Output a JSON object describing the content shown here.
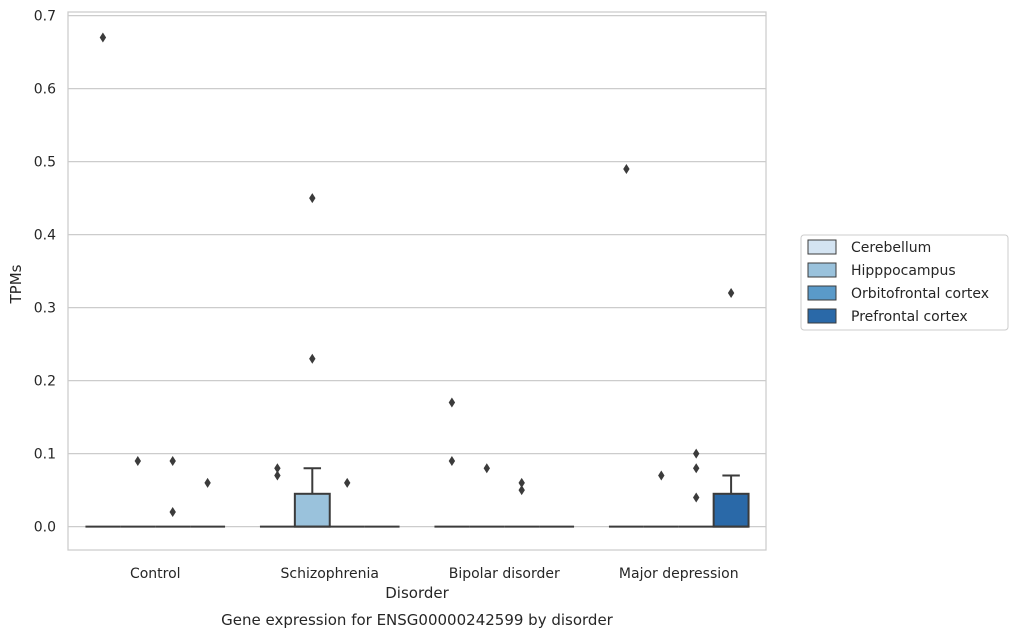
{
  "chart_data": {
    "type": "box",
    "title": "",
    "caption": "Gene expression for ENSG00000242599 by disorder",
    "xlabel": "Disorder",
    "ylabel": "TPMs",
    "ylim": [
      -0.032,
      0.705
    ],
    "yticks": [
      0.0,
      0.1,
      0.2,
      0.3,
      0.4,
      0.5,
      0.6,
      0.7
    ],
    "ytick_labels": [
      "0.0",
      "0.1",
      "0.2",
      "0.3",
      "0.4",
      "0.5",
      "0.6",
      "0.7"
    ],
    "grid": "horizontal",
    "legend_position": "right",
    "categories": [
      "Control",
      "Schizophrenia",
      "Bipolar disorder",
      "Major depression"
    ],
    "series": [
      {
        "name": "Cerebellum",
        "color": "#d4e4f2",
        "boxes": [
          {
            "q1": 0,
            "median": 0,
            "q3": 0,
            "whisker_low": 0,
            "whisker_high": 0,
            "outliers": [
              0.67
            ]
          },
          {
            "q1": 0,
            "median": 0,
            "q3": 0,
            "whisker_low": 0,
            "whisker_high": 0,
            "outliers": [
              0.07,
              0.08
            ]
          },
          {
            "q1": 0,
            "median": 0,
            "q3": 0,
            "whisker_low": 0,
            "whisker_high": 0,
            "outliers": [
              0.09,
              0.17
            ]
          },
          {
            "q1": 0,
            "median": 0,
            "q3": 0,
            "whisker_low": 0,
            "whisker_high": 0,
            "outliers": [
              0.49
            ]
          }
        ]
      },
      {
        "name": "Hipppocampus",
        "color": "#9ac2dc",
        "boxes": [
          {
            "q1": 0,
            "median": 0,
            "q3": 0,
            "whisker_low": 0,
            "whisker_high": 0,
            "outliers": [
              0.09
            ]
          },
          {
            "q1": 0,
            "median": 0,
            "q3": 0.045,
            "whisker_low": 0,
            "whisker_high": 0.08,
            "outliers": [
              0.23,
              0.45
            ]
          },
          {
            "q1": 0,
            "median": 0,
            "q3": 0,
            "whisker_low": 0,
            "whisker_high": 0,
            "outliers": [
              0.08
            ]
          },
          {
            "q1": 0,
            "median": 0,
            "q3": 0,
            "whisker_low": 0,
            "whisker_high": 0,
            "outliers": [
              0.07
            ]
          }
        ]
      },
      {
        "name": "Orbitofrontal cortex",
        "color": "#5a9ac9",
        "boxes": [
          {
            "q1": 0,
            "median": 0,
            "q3": 0,
            "whisker_low": 0,
            "whisker_high": 0,
            "outliers": [
              0.02,
              0.09
            ]
          },
          {
            "q1": 0,
            "median": 0,
            "q3": 0,
            "whisker_low": 0,
            "whisker_high": 0,
            "outliers": [
              0.06
            ]
          },
          {
            "q1": 0,
            "median": 0,
            "q3": 0,
            "whisker_low": 0,
            "whisker_high": 0,
            "outliers": [
              0.05,
              0.06
            ]
          },
          {
            "q1": 0,
            "median": 0,
            "q3": 0,
            "whisker_low": 0,
            "whisker_high": 0,
            "outliers": [
              0.04,
              0.08,
              0.1
            ]
          }
        ]
      },
      {
        "name": "Prefrontal cortex",
        "color": "#2a69a8",
        "boxes": [
          {
            "q1": 0,
            "median": 0,
            "q3": 0,
            "whisker_low": 0,
            "whisker_high": 0,
            "outliers": [
              0.06
            ]
          },
          {
            "q1": 0,
            "median": 0,
            "q3": 0,
            "whisker_low": 0,
            "whisker_high": 0,
            "outliers": []
          },
          {
            "q1": 0,
            "median": 0,
            "q3": 0,
            "whisker_low": 0,
            "whisker_high": 0,
            "outliers": []
          },
          {
            "q1": 0,
            "median": 0,
            "q3": 0.045,
            "whisker_low": 0,
            "whisker_high": 0.07,
            "outliers": [
              0.32
            ]
          }
        ]
      }
    ]
  }
}
